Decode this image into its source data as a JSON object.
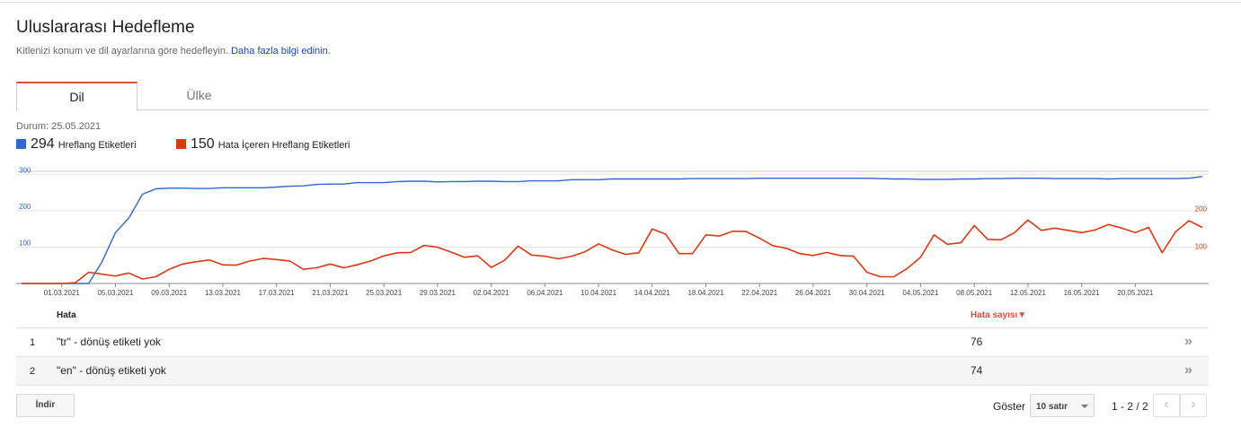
{
  "page": {
    "title": "Uluslararası Hedefleme",
    "subtitle": "Kitlenizi konum ve dil ayarlarına göre hedefleyin.",
    "learn_more": "Daha fazla bilgi edinin."
  },
  "tabs": [
    {
      "label": "Dil",
      "active": true
    },
    {
      "label": "Ülke",
      "active": false
    }
  ],
  "status": "Durum: 25.05.2021",
  "legend": [
    {
      "count": "294",
      "label": "Hreflang Etiketleri",
      "color": "#3366cc"
    },
    {
      "count": "150",
      "label": "Hata İçeren Hreflang Etiketleri",
      "color": "#dc3912"
    }
  ],
  "chart_data": {
    "type": "line",
    "x": [
      "26.02.2021",
      "27.02.2021",
      "28.02.2021",
      "01.03.2021",
      "02.03.2021",
      "03.03.2021",
      "04.03.2021",
      "05.03.2021",
      "06.03.2021",
      "07.03.2021",
      "08.03.2021",
      "09.03.2021",
      "10.03.2021",
      "11.03.2021",
      "12.03.2021",
      "13.03.2021",
      "14.03.2021",
      "15.03.2021",
      "16.03.2021",
      "17.03.2021",
      "18.03.2021",
      "19.03.2021",
      "20.03.2021",
      "21.03.2021",
      "22.03.2021",
      "23.03.2021",
      "24.03.2021",
      "25.03.2021",
      "26.03.2021",
      "27.03.2021",
      "28.03.2021",
      "29.03.2021",
      "30.03.2021",
      "31.03.2021",
      "01.04.2021",
      "02.04.2021",
      "03.04.2021",
      "04.04.2021",
      "05.04.2021",
      "06.04.2021",
      "07.04.2021",
      "08.04.2021",
      "09.04.2021",
      "10.04.2021",
      "11.04.2021",
      "12.04.2021",
      "13.04.2021",
      "14.04.2021",
      "15.04.2021",
      "16.04.2021",
      "17.04.2021",
      "18.04.2021",
      "19.04.2021",
      "20.04.2021",
      "21.04.2021",
      "22.04.2021",
      "23.04.2021",
      "24.04.2021",
      "25.04.2021",
      "26.04.2021",
      "27.04.2021",
      "28.04.2021",
      "29.04.2021",
      "30.04.2021",
      "01.05.2021",
      "02.05.2021",
      "03.05.2021",
      "04.05.2021",
      "05.05.2021",
      "06.05.2021",
      "07.05.2021",
      "08.05.2021",
      "09.05.2021",
      "10.05.2021",
      "11.05.2021",
      "12.05.2021",
      "13.05.2021",
      "14.05.2021",
      "15.05.2021",
      "16.05.2021",
      "17.05.2021",
      "18.05.2021",
      "19.05.2021",
      "20.05.2021",
      "21.05.2021",
      "22.05.2021",
      "23.05.2021",
      "24.05.2021",
      "25.05.2021"
    ],
    "x_tick_labels": [
      "01.03.2021",
      "05.03.2021",
      "09.03.2021",
      "13.03.2021",
      "17.03.2021",
      "21.03.2021",
      "25.03.2021",
      "29.03.2021",
      "02.04.2021",
      "06.04.2021",
      "10.04.2021",
      "14.04.2021",
      "18.04.2021",
      "22.04.2021",
      "26.04.2021",
      "30.04.2021",
      "04.05.2021",
      "08.05.2021",
      "12.05.2021",
      "16.05.2021",
      "20.05.2021"
    ],
    "left_axis": {
      "ticks": [
        100,
        200,
        300
      ],
      "ylim": [
        0,
        308
      ]
    },
    "right_axis": {
      "ticks": [
        100,
        200
      ],
      "ylim": [
        0,
        300
      ]
    },
    "series": [
      {
        "name": "Hreflang Etiketleri",
        "color": "#3366cc",
        "axis": "left",
        "values": [
          0,
          0,
          0,
          0,
          0,
          0,
          60,
          140,
          180,
          245,
          260,
          262,
          262,
          261,
          261,
          263,
          263,
          263,
          263,
          265,
          267,
          268,
          272,
          273,
          273,
          277,
          277,
          277,
          280,
          281,
          281,
          279,
          280,
          280,
          281,
          281,
          280,
          280,
          282,
          282,
          282,
          285,
          285,
          285,
          287,
          287,
          287,
          287,
          287,
          287,
          288,
          288,
          288,
          288,
          288,
          289,
          289,
          289,
          289,
          289,
          289,
          289,
          289,
          289,
          288,
          287,
          287,
          286,
          286,
          286,
          287,
          287,
          288,
          288,
          289,
          289,
          289,
          288,
          288,
          288,
          288,
          287,
          288,
          288,
          288,
          288,
          288,
          289,
          294
        ]
      },
      {
        "name": "Hata İçeren Hreflang Etiketleri",
        "color": "#dc3912",
        "axis": "right",
        "values": [
          0,
          0,
          0,
          0,
          2,
          30,
          25,
          20,
          28,
          12,
          18,
          38,
          52,
          58,
          63,
          50,
          49,
          60,
          67,
          64,
          60,
          38,
          42,
          52,
          42,
          50,
          60,
          74,
          82,
          83,
          102,
          97,
          84,
          70,
          74,
          43,
          62,
          100,
          76,
          73,
          66,
          73,
          85,
          106,
          90,
          78,
          82,
          146,
          132,
          80,
          80,
          130,
          127,
          140,
          139,
          121,
          101,
          94,
          80,
          75,
          83,
          75,
          73,
          30,
          18,
          18,
          40,
          70,
          130,
          105,
          109,
          155,
          118,
          117,
          136,
          170,
          142,
          148,
          142,
          136,
          143,
          158,
          148,
          136,
          150,
          82,
          138,
          168,
          150
        ]
      }
    ]
  },
  "table": {
    "headers": {
      "error": "Hata",
      "count": "Hata sayısı▼"
    },
    "rows": [
      {
        "index": "1",
        "error": "\"tr\" - dönüş etiketi yok",
        "count": "76"
      },
      {
        "index": "2",
        "error": "\"en\" - dönüş etiketi yok",
        "count": "74"
      }
    ]
  },
  "footer": {
    "download_label": "İndir",
    "show_label": "Göster",
    "rows_select": "10 satır",
    "pager": "1 - 2 / 2"
  }
}
